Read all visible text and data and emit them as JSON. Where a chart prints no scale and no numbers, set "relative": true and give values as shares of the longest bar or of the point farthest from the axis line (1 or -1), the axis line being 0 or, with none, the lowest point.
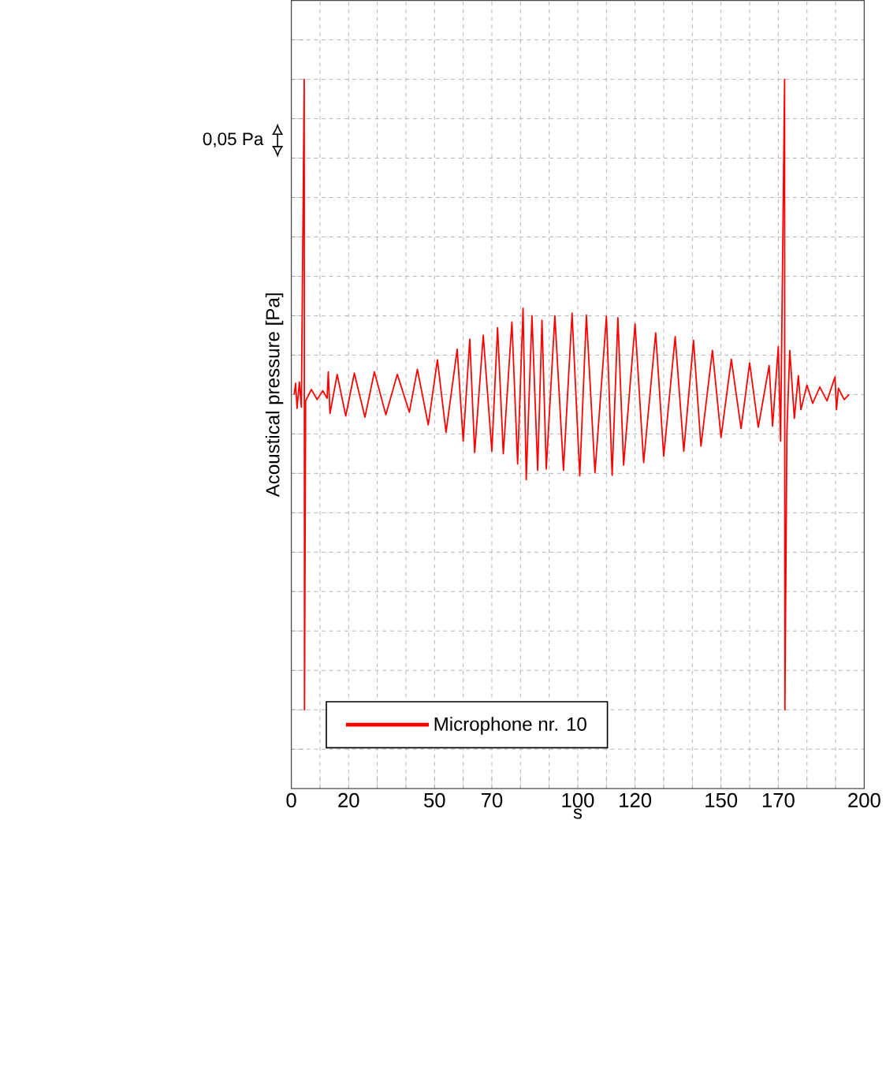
{
  "chart_data": {
    "type": "line",
    "xlabel": "s",
    "ylabel": "Acoustical pressure [Pa]",
    "annotations": [
      "0,05 Pa"
    ],
    "relative": true,
    "xlim": [
      0,
      200
    ],
    "xticks": [
      0,
      {
        "value": 10,
        "label": null
      },
      20,
      {
        "value": 30,
        "label": null
      },
      {
        "value": 40,
        "label": null
      },
      50,
      {
        "value": 60,
        "label": null
      },
      70,
      {
        "value": 80,
        "label": null
      },
      {
        "value": 90,
        "label": null
      },
      100,
      {
        "value": 110,
        "label": null
      },
      120,
      {
        "value": 130,
        "label": null
      },
      {
        "value": 140,
        "label": null
      },
      150,
      {
        "value": 160,
        "label": null
      },
      170,
      {
        "value": 180,
        "label": null
      },
      {
        "value": 190,
        "label": null
      },
      200
    ],
    "grid": true,
    "legend": "bottom left",
    "x": [
      1,
      1.5,
      2,
      2.8,
      3.5,
      4.5,
      4.6,
      5,
      7,
      9,
      11,
      12.5,
      12.9,
      13.5,
      16,
      19,
      22,
      25.7,
      29,
      33,
      37,
      41.2,
      44,
      47.8,
      51,
      54,
      57.9,
      60,
      62.3,
      64,
      67,
      70,
      72,
      74,
      77,
      79,
      80.9,
      82,
      84,
      86,
      87.5,
      89,
      92,
      95,
      98,
      100.7,
      103,
      106,
      110,
      112,
      114,
      116,
      120,
      123,
      127.2,
      130,
      134,
      137,
      140.4,
      143,
      147,
      150,
      153.6,
      157,
      160,
      163,
      166.8,
      168,
      170,
      170.8,
      172.2,
      172.3,
      173,
      174,
      175.6,
      177,
      177.9,
      180,
      182,
      184.5,
      187,
      189.8,
      190.3,
      191,
      193,
      194.7
    ],
    "series": [
      {
        "name": "Microphone nr. 10",
        "color": "#ff0000",
        "values": [
          0.5,
          0.518,
          0.478,
          0.52,
          0.48,
          1,
          0,
          0.49,
          0.508,
          0.492,
          0.506,
          0.494,
          0.536,
          0.47,
          0.532,
          0.466,
          0.534,
          0.464,
          0.536,
          0.468,
          0.532,
          0.472,
          0.54,
          0.452,
          0.555,
          0.44,
          0.572,
          0.426,
          0.588,
          0.408,
          0.594,
          0.41,
          0.606,
          0.406,
          0.615,
          0.39,
          0.637,
          0.365,
          0.625,
          0.38,
          0.618,
          0.382,
          0.625,
          0.38,
          0.629,
          0.371,
          0.626,
          0.376,
          0.624,
          0.372,
          0.622,
          0.388,
          0.612,
          0.392,
          0.598,
          0.402,
          0.592,
          0.41,
          0.586,
          0.418,
          0.57,
          0.432,
          0.556,
          0.446,
          0.55,
          0.448,
          0.546,
          0.45,
          0.576,
          0.426,
          1,
          0,
          0.44,
          0.57,
          0.462,
          0.53,
          0.476,
          0.515,
          0.486,
          0.512,
          0.49,
          0.528,
          0.476,
          0.51,
          0.492,
          0.5
        ]
      }
    ]
  }
}
